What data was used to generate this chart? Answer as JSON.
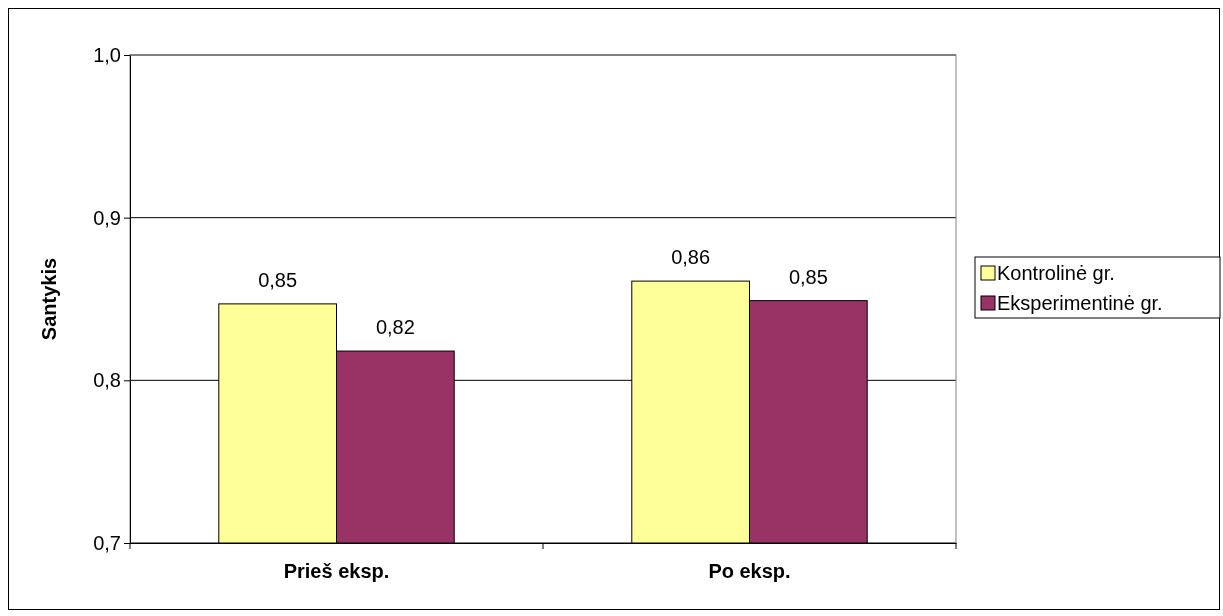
{
  "chart_data": {
    "type": "bar",
    "ylabel": "Santykis",
    "categories": [
      "Prieš eksp.",
      "Po eksp."
    ],
    "series": [
      {
        "name": "Kontrolinė gr.",
        "color": "#ffff99",
        "values": [
          0.847,
          0.861
        ],
        "value_labels": [
          "0,85",
          "0,86"
        ]
      },
      {
        "name": "Eksperimentinė gr.",
        "color": "#993366",
        "values": [
          0.818,
          0.849
        ],
        "value_labels": [
          "0,82",
          "0,85"
        ]
      }
    ],
    "ylim": [
      0.7,
      1.0
    ],
    "yticks": [
      {
        "value": 0.7,
        "label": "0,7"
      },
      {
        "value": 0.8,
        "label": "0,8"
      },
      {
        "value": 0.9,
        "label": "0,9"
      },
      {
        "value": 1.0,
        "label": "1,0"
      }
    ],
    "grid": "y",
    "legend": "right"
  }
}
